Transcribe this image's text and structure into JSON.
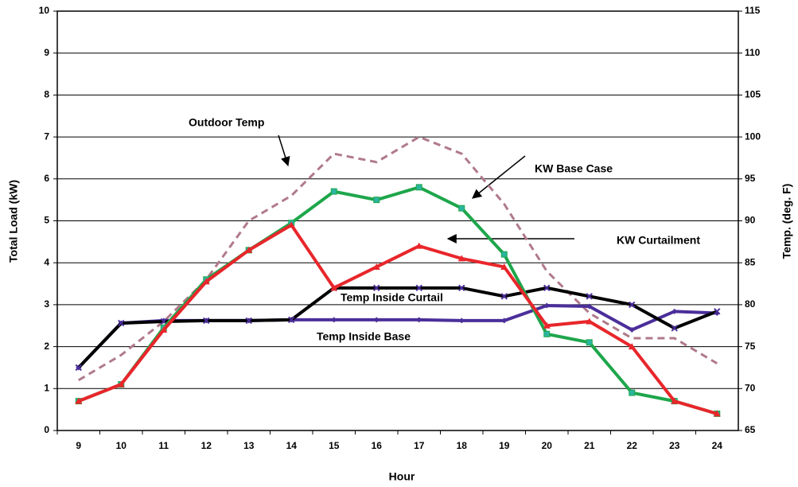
{
  "chart_data": {
    "type": "line",
    "categories": [
      "9",
      "10",
      "11",
      "12",
      "13",
      "14",
      "15",
      "16",
      "17",
      "18",
      "19",
      "20",
      "21",
      "22",
      "23",
      "24"
    ],
    "xlabel": "Hour",
    "ylabel": "Total Load (kW)",
    "y2label": "Temp. (deg. F)",
    "ylim": [
      0,
      10
    ],
    "yticks": [
      0,
      1,
      2,
      3,
      4,
      5,
      6,
      7,
      8,
      9,
      10
    ],
    "y2lim": [
      65,
      115
    ],
    "y2ticks": [
      65,
      70,
      75,
      80,
      85,
      90,
      95,
      100,
      105,
      110,
      115
    ],
    "grid": true,
    "annotations": [
      "Outdoor Temp",
      "KW Base Case",
      "KW Curtailment",
      "Temp Inside Curtail",
      "Temp Inside Base"
    ],
    "series": [
      {
        "name": "KW Base Case",
        "color": "#1ea64b",
        "marker": "square",
        "values": [
          0.7,
          1.1,
          2.45,
          3.6,
          4.3,
          4.95,
          5.7,
          5.5,
          5.8,
          5.3,
          4.2,
          2.3,
          2.1,
          0.9,
          0.7,
          0.4
        ]
      },
      {
        "name": "KW Curtailment",
        "color": "#e8262b",
        "marker": "triangle",
        "values": [
          0.7,
          1.1,
          2.4,
          3.55,
          4.3,
          4.9,
          3.4,
          3.9,
          4.4,
          4.1,
          3.9,
          2.5,
          2.6,
          2.0,
          0.7,
          0.4
        ]
      },
      {
        "name": "Outdoor Temp",
        "color": "#b07a8a",
        "dashed": true,
        "axis": "y2",
        "values": [
          71,
          74,
          78,
          83,
          90,
          93,
          98,
          97,
          100,
          98,
          92,
          84,
          79,
          76,
          76,
          73
        ]
      },
      {
        "name": "Temp Inside Curtail",
        "color": "#000000",
        "marker": "x",
        "axis": "y2",
        "values": [
          72.5,
          77.8,
          78,
          78.1,
          78.1,
          78.2,
          82,
          82,
          82,
          82,
          81,
          82,
          81,
          80,
          77.2,
          79.2
        ]
      },
      {
        "name": "Temp Inside Base",
        "color": "#4b2e9a",
        "marker": "diamond",
        "axis": "y2",
        "values": [
          72.5,
          77.8,
          78.1,
          78.1,
          78.1,
          78.2,
          78.2,
          78.2,
          78.2,
          78.1,
          78.1,
          79.9,
          79.8,
          77,
          79.2,
          79
        ]
      }
    ]
  }
}
